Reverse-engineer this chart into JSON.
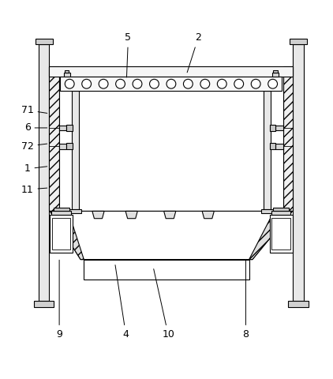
{
  "line_color": "#000000",
  "bg_color": "#ffffff",
  "labels": {
    "2": [
      0.595,
      0.955,
      0.56,
      0.845
    ],
    "5": [
      0.385,
      0.955,
      0.38,
      0.83
    ],
    "71": [
      0.082,
      0.738,
      0.148,
      0.728
    ],
    "6": [
      0.082,
      0.685,
      0.148,
      0.685
    ],
    "72": [
      0.082,
      0.63,
      0.148,
      0.638
    ],
    "1": [
      0.082,
      0.562,
      0.148,
      0.57
    ],
    "11": [
      0.082,
      0.5,
      0.148,
      0.505
    ],
    "9": [
      0.178,
      0.065,
      0.178,
      0.295
    ],
    "4": [
      0.378,
      0.065,
      0.345,
      0.28
    ],
    "10": [
      0.505,
      0.065,
      0.46,
      0.268
    ],
    "8": [
      0.738,
      0.065,
      0.738,
      0.295
    ]
  }
}
